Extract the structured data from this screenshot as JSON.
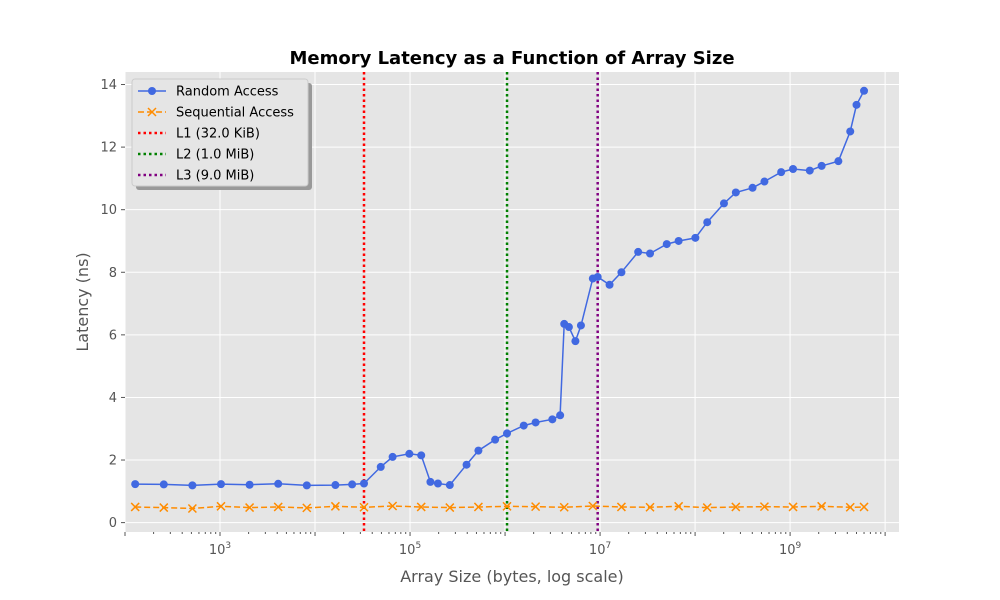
{
  "chart_data": {
    "type": "line",
    "title": "Memory Latency as a Function of Array Size",
    "xlabel": "Array Size (bytes, log scale)",
    "ylabel": "Latency (ns)",
    "xscale": "log",
    "xlim": [
      100,
      14000000000
    ],
    "ylim": [
      -0.3,
      14.4
    ],
    "x_ticks": [
      {
        "value": 1000,
        "base": "10",
        "exp": "3"
      },
      {
        "value": 100000,
        "base": "10",
        "exp": "5"
      },
      {
        "value": 10000000,
        "base": "10",
        "exp": "7"
      },
      {
        "value": 1000000000,
        "base": "10",
        "exp": "9"
      }
    ],
    "y_ticks": [
      "0",
      "2",
      "4",
      "6",
      "8",
      "10",
      "12",
      "14"
    ],
    "grid": true,
    "legend_position": "upper-left",
    "series": [
      {
        "name": "Random Access",
        "color": "#4169e1",
        "marker": "circle",
        "linestyle": "solid",
        "x": [
          128,
          256,
          512,
          1024,
          2048,
          4096,
          8192,
          16384,
          24576,
          32768,
          49152,
          65536,
          98304,
          131072,
          163840,
          196608,
          262144,
          393216,
          524288,
          786432,
          1048576,
          1572864,
          2097152,
          3145728,
          3800000,
          4194304,
          4700000,
          5500000,
          6291456,
          8388608,
          9437184,
          12582912,
          16777216,
          25165824,
          33554432,
          50331648,
          67108864,
          100663296,
          134217728,
          201326592,
          268435456,
          402653184,
          536870912,
          805306368,
          1073741824,
          1610612736,
          2147483648,
          3221225472,
          4294967296,
          5000000000,
          6000000000
        ],
        "y": [
          1.23,
          1.22,
          1.19,
          1.23,
          1.21,
          1.24,
          1.19,
          1.2,
          1.22,
          1.25,
          1.78,
          2.1,
          2.2,
          2.15,
          1.3,
          1.25,
          1.2,
          1.85,
          2.3,
          2.65,
          2.85,
          3.1,
          3.2,
          3.3,
          3.43,
          6.35,
          6.25,
          5.8,
          6.3,
          7.8,
          7.85,
          7.6,
          8.0,
          8.65,
          8.6,
          8.9,
          9.0,
          9.1,
          9.6,
          10.2,
          10.55,
          10.7,
          10.9,
          11.2,
          11.3,
          11.25,
          11.4,
          11.55,
          12.5,
          13.35,
          13.8
        ]
      },
      {
        "name": "Sequential Access",
        "color": "#ff8c00",
        "marker": "x",
        "linestyle": "dashed",
        "x": [
          128,
          256,
          512,
          1024,
          2048,
          4096,
          8192,
          16384,
          32768,
          65536,
          131072,
          262144,
          524288,
          1048576,
          2097152,
          4194304,
          8388608,
          16777216,
          33554432,
          67108864,
          134217728,
          268435456,
          536870912,
          1073741824,
          2147483648,
          4294967296,
          6000000000
        ],
        "y": [
          0.5,
          0.48,
          0.45,
          0.52,
          0.48,
          0.5,
          0.47,
          0.52,
          0.49,
          0.53,
          0.5,
          0.48,
          0.5,
          0.52,
          0.51,
          0.49,
          0.53,
          0.5,
          0.49,
          0.52,
          0.48,
          0.5,
          0.51,
          0.5,
          0.52,
          0.49,
          0.5
        ]
      }
    ],
    "vlines": [
      {
        "name": "L1 (32.0 KiB)",
        "x": 32768,
        "color": "#ff0000"
      },
      {
        "name": "L2 (1.0 MiB)",
        "x": 1048576,
        "color": "#008000"
      },
      {
        "name": "L3 (9.0 MiB)",
        "x": 9437184,
        "color": "#800080"
      }
    ]
  }
}
